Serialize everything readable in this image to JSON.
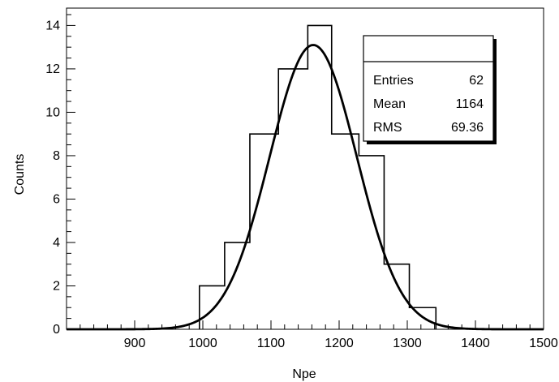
{
  "chart_data": {
    "type": "bar",
    "subtype": "histogram-with-gaussian-fit",
    "title": "",
    "xlabel": "Npe",
    "ylabel": "Counts",
    "xlim": [
      800,
      1500
    ],
    "ylim": [
      0,
      14.8
    ],
    "x_ticks": [
      900,
      1000,
      1100,
      1200,
      1300,
      1400,
      1500
    ],
    "y_ticks": [
      0,
      2,
      4,
      6,
      8,
      10,
      12,
      14
    ],
    "x_minor_step": 20,
    "y_minor_step": 0.5,
    "grid": false,
    "bin_edges": [
      995,
      1032,
      1069,
      1111,
      1154,
      1189,
      1229,
      1266,
      1303,
      1342
    ],
    "counts": [
      2,
      4,
      9,
      12,
      14,
      9,
      8,
      3,
      1
    ],
    "fit": {
      "function": "gaussian",
      "amplitude": 13.1,
      "mean": 1162,
      "sigma": 64
    },
    "stats_box": {
      "title": "",
      "rows": [
        {
          "label": "Entries",
          "value": "62"
        },
        {
          "label": "Mean",
          "value": "1164"
        },
        {
          "label": "RMS",
          "value": "69.36"
        }
      ]
    },
    "colors": {
      "line": "#000000",
      "background": "#ffffff",
      "box_shadow": "#000000"
    }
  }
}
